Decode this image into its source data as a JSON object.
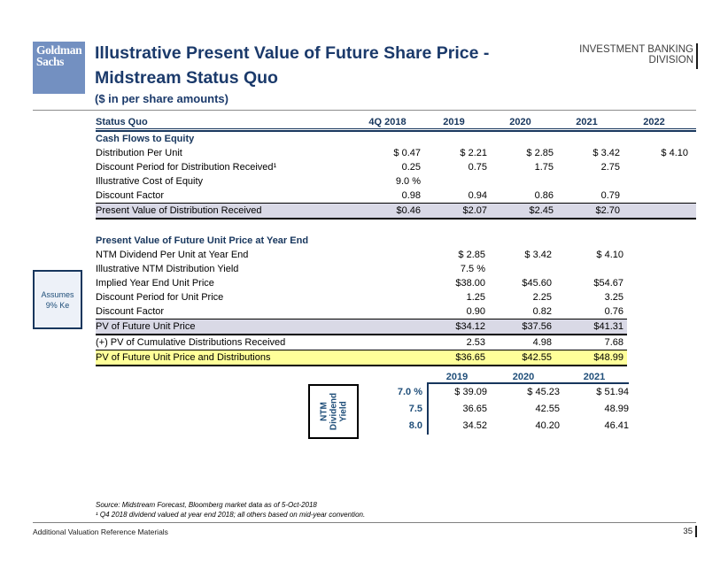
{
  "header": {
    "logo_line1": "Goldman",
    "logo_line2": "Sachs",
    "title_line1": "Illustrative Present Value of Future Share Price -",
    "title_line2": "Midstream Status Quo",
    "subtitle": "($ in per share amounts)",
    "division_line1": "INVESTMENT BANKING",
    "division_line2": "DIVISION"
  },
  "colors": {
    "navy": "#17365d",
    "accent_blue": "#1f4e79",
    "logo_blue": "#7390c1",
    "shaded_row": "#d9d9e6",
    "highlight_row": "#ffff99"
  },
  "table1": {
    "columns": [
      "Status Quo",
      "4Q 2018",
      "2019",
      "2020",
      "2021",
      "2022"
    ],
    "rows": [
      {
        "style": "section",
        "label": "Cash Flows to Equity",
        "values": [
          "",
          "",
          "",
          "",
          ""
        ]
      },
      {
        "style": "plain",
        "label": "Distribution Per Unit",
        "values": [
          "$ 0.47",
          "$ 2.21",
          "$ 2.85",
          "$ 3.42",
          "$ 4.10"
        ]
      },
      {
        "style": "plain",
        "label": "Discount Period for Distribution Received¹",
        "values": [
          "0.25",
          "0.75",
          "1.75",
          "2.75",
          ""
        ]
      },
      {
        "style": "plain",
        "label": "Illustrative Cost of Equity",
        "values": [
          "9.0 %",
          "",
          "",
          "",
          ""
        ]
      },
      {
        "style": "plain",
        "label": "Discount Factor",
        "values": [
          "0.98",
          "0.94",
          "0.86",
          "0.79",
          ""
        ]
      },
      {
        "style": "shaded",
        "label": "Present Value of Distribution Received",
        "values": [
          "$0.46",
          "$2.07",
          "$2.45",
          "$2.70",
          ""
        ]
      }
    ]
  },
  "table2": {
    "rows": [
      {
        "style": "section",
        "label": "Present Value of Future Unit Price at Year End",
        "values": [
          "",
          "",
          ""
        ]
      },
      {
        "style": "plain",
        "label": "NTM Dividend Per Unit at Year End",
        "values": [
          "$ 2.85",
          "$ 3.42",
          "$ 4.10"
        ]
      },
      {
        "style": "plain",
        "label": "Illustrative NTM Distribution Yield",
        "values": [
          "7.5 %",
          "",
          ""
        ]
      },
      {
        "style": "plain",
        "label": "Implied Year End Unit Price",
        "values": [
          "$38.00",
          "$45.60",
          "$54.67"
        ]
      },
      {
        "style": "plain",
        "label": "Discount Period for Unit Price",
        "values": [
          "1.25",
          "2.25",
          "3.25"
        ]
      },
      {
        "style": "plain",
        "label": "Discount Factor",
        "values": [
          "0.90",
          "0.82",
          "0.76"
        ]
      },
      {
        "style": "shaded",
        "label": "PV of Future Unit Price",
        "values": [
          "$34.12",
          "$37.56",
          "$41.31"
        ]
      },
      {
        "style": "plain",
        "label": "(+) PV of Cumulative Distributions Received",
        "values": [
          "2.53",
          "4.98",
          "7.68"
        ]
      },
      {
        "style": "highlight",
        "label": "PV of Future Unit Price and Distributions",
        "values": [
          "$36.65",
          "$42.55",
          "$48.99"
        ]
      }
    ]
  },
  "assumes_note": "Assumes 9% Ke",
  "sensitivity": {
    "axis_label": "NTM Dividend Yield",
    "columns": [
      "2019",
      "2020",
      "2021"
    ],
    "rows": [
      {
        "style": "plain",
        "label": "7.0 %",
        "values": [
          "$ 39.09",
          "$ 45.23",
          "$ 51.94"
        ]
      },
      {
        "style": "plain",
        "label": "7.5",
        "values": [
          "36.65",
          "42.55",
          "48.99"
        ]
      },
      {
        "style": "plain",
        "label": "8.0",
        "values": [
          "34.52",
          "40.20",
          "46.41"
        ]
      }
    ]
  },
  "footnotes": {
    "source": "Source: Midstream Forecast, Bloomberg market data as of 5-Oct-2018",
    "note1": "¹ Q4 2018 dividend valued at year end 2018; all others based on mid-year convention."
  },
  "footer": {
    "left": "Additional Valuation Reference Materials",
    "page": "35"
  }
}
